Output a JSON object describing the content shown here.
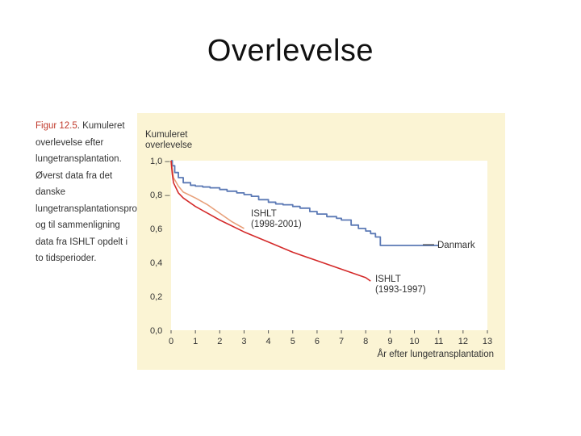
{
  "slide": {
    "title": "Overlevelse"
  },
  "caption": {
    "label": "Figur 12.5",
    "text": "Kumuleret overlevelse efter lungetransplantation. Øverst data fra det danske lungetransplantationsprogram og til sammenligning data fra ISHLT opdelt i to tidsperioder."
  },
  "colors": {
    "background": "#fbf4d4",
    "plot_area": "#ffffff",
    "danmark": "#5b79b5",
    "ishlt_1998": "#e8a07a",
    "ishlt_1993": "#d42a2a"
  },
  "chart_data": {
    "type": "line",
    "ylabel_line1": "Kumuleret",
    "ylabel_line2": "overlevelse",
    "xlabel": "År efter lungetransplantation",
    "xlim": [
      0,
      13
    ],
    "ylim": [
      0,
      1.0
    ],
    "xticks": [
      0,
      1,
      2,
      3,
      4,
      5,
      6,
      7,
      8,
      9,
      10,
      11,
      12,
      13
    ],
    "yticks": [
      {
        "value": 0.0,
        "label": "0,0"
      },
      {
        "value": 0.2,
        "label": "0,2"
      },
      {
        "value": 0.4,
        "label": "0,4"
      },
      {
        "value": 0.6,
        "label": "0,6"
      },
      {
        "value": 0.8,
        "label": "0,8 –"
      },
      {
        "value": 1.0,
        "label": "1,0 –"
      }
    ],
    "series": [
      {
        "name": "Danmark",
        "label": "Danmark",
        "color": "#5b79b5",
        "step": true,
        "x": [
          0,
          0.05,
          0.15,
          0.3,
          0.5,
          0.8,
          1.0,
          1.3,
          1.6,
          2.0,
          2.3,
          2.7,
          3.0,
          3.3,
          3.6,
          4.0,
          4.3,
          4.6,
          5.0,
          5.3,
          5.7,
          6.0,
          6.4,
          6.8,
          7.0,
          7.4,
          7.7,
          8.0,
          8.2,
          8.4,
          8.6,
          9.0,
          10.0,
          11.0
        ],
        "y": [
          1.0,
          0.97,
          0.93,
          0.9,
          0.87,
          0.855,
          0.85,
          0.845,
          0.84,
          0.83,
          0.82,
          0.81,
          0.8,
          0.79,
          0.77,
          0.755,
          0.745,
          0.74,
          0.73,
          0.72,
          0.7,
          0.685,
          0.67,
          0.66,
          0.65,
          0.62,
          0.6,
          0.585,
          0.57,
          0.55,
          0.5,
          0.5,
          0.5,
          0.5
        ]
      },
      {
        "name": "ISHLT (1998-2001)",
        "label_line1": "ISHLT",
        "label_line2": "(1998-2001)",
        "color": "#e8a07a",
        "step": false,
        "x": [
          0,
          0.1,
          0.3,
          0.5,
          1.0,
          1.5,
          2.0,
          2.5,
          3.0
        ],
        "y": [
          1.0,
          0.9,
          0.85,
          0.815,
          0.78,
          0.74,
          0.69,
          0.64,
          0.6
        ]
      },
      {
        "name": "ISHLT (1993-1997)",
        "label_line1": "ISHLT",
        "label_line2": "(1993-1997)",
        "color": "#d42a2a",
        "step": false,
        "x": [
          0,
          0.05,
          0.1,
          0.3,
          0.5,
          1.0,
          1.5,
          2.0,
          3.0,
          4.0,
          5.0,
          6.0,
          7.0,
          8.0,
          8.2
        ],
        "y": [
          1.0,
          0.92,
          0.87,
          0.81,
          0.78,
          0.73,
          0.69,
          0.65,
          0.58,
          0.52,
          0.46,
          0.41,
          0.36,
          0.31,
          0.29
        ]
      }
    ]
  }
}
